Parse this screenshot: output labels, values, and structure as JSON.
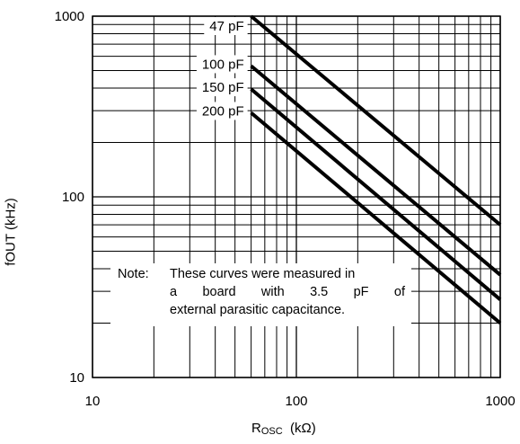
{
  "chart_data": {
    "type": "line",
    "xscale": "log",
    "yscale": "log",
    "xlim": [
      10,
      1000
    ],
    "ylim": [
      10,
      1000
    ],
    "grid": true,
    "xticks": [
      "10",
      "100",
      "1000"
    ],
    "yticks": [
      "1000",
      "100",
      "10"
    ],
    "ylabel": "fOUT  (kHz)",
    "xlabel_main": "R",
    "xlabel_sub": "OSC",
    "xlabel_unit": "(kΩ)",
    "series": [
      {
        "name": "47 pF",
        "x": [
          60,
          1000
        ],
        "y": [
          1000,
          70
        ]
      },
      {
        "name": "100 pF",
        "x": [
          60,
          1000
        ],
        "y": [
          530,
          37
        ]
      },
      {
        "name": "150 pF",
        "x": [
          60,
          1000
        ],
        "y": [
          395,
          27
        ]
      },
      {
        "name": "200 pF",
        "x": [
          60,
          1000
        ],
        "y": [
          292,
          20
        ]
      }
    ],
    "note": {
      "head": "Note:",
      "lines": [
        "These curves were measured in",
        "a board with 3.5 pF of",
        "external parasitic capacitance."
      ]
    }
  }
}
